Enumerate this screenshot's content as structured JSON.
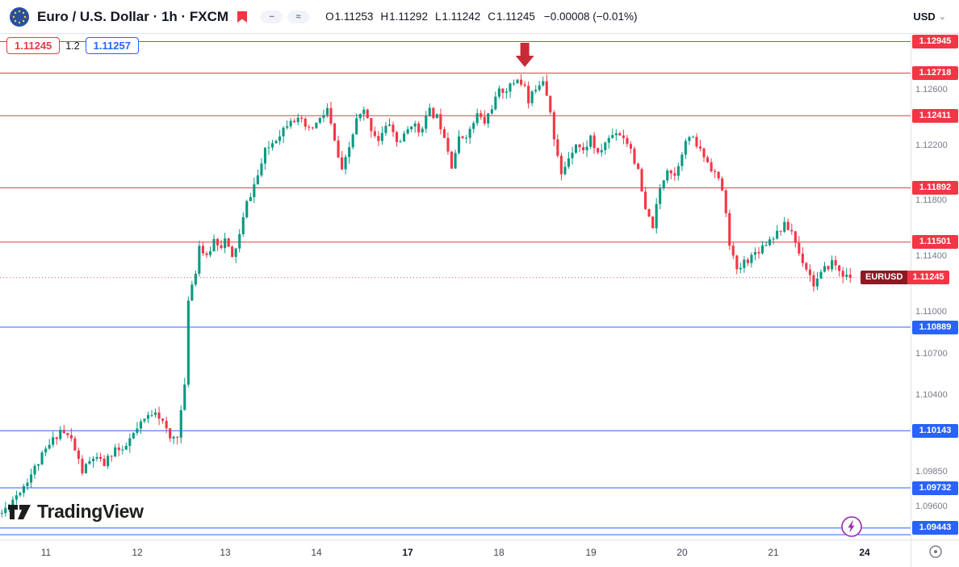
{
  "header": {
    "symbol_title": "Euro / U.S. Dollar · 1h · FXCM",
    "pills": [
      "−",
      "≈"
    ],
    "ohlc": {
      "o_label": "O",
      "o_value": "1.11253",
      "h_label": "H",
      "h_value": "1.11292",
      "l_label": "L",
      "l_value": "1.11242",
      "c_label": "C",
      "c_value": "1.11245",
      "change_value": "−0.00008 (−0.01%)"
    },
    "currency": "USD"
  },
  "icons": {
    "chevron_down": "⌄"
  },
  "overlay_labels": {
    "left_price": "1.11245",
    "mid_text": "1.2",
    "right_price": "1.11257"
  },
  "watermark": {
    "text": "TradingView"
  },
  "chart_data": {
    "type": "candlestick",
    "symbol": "EURUSD",
    "interval": "1h",
    "exchange": "FXCM",
    "title": "Euro / U.S. Dollar · 1h · FXCM",
    "ohlc_current": {
      "open": 1.11253,
      "high": 1.11292,
      "low": 1.11242,
      "close": 1.11245,
      "change": -8e-05,
      "change_pct": "-0.01%"
    },
    "ylim": [
      1.0936,
      1.13
    ],
    "n_slots": 249,
    "n_candles": 233,
    "levels_resistance": [
      {
        "price": 1.12945,
        "label": "1.12945"
      },
      {
        "price": 1.12718,
        "label": "1.12718"
      },
      {
        "price": 1.12411,
        "label": "1.12411"
      },
      {
        "price": 1.11892,
        "label": "1.11892"
      },
      {
        "price": 1.11501,
        "label": "1.11501"
      }
    ],
    "levels_support": [
      {
        "price": 1.10889,
        "label": "1.10889"
      },
      {
        "price": 1.10143,
        "label": "1.10143"
      },
      {
        "price": 1.09732,
        "label": "1.09732"
      },
      {
        "price": 1.09443,
        "label": "1.09443"
      },
      {
        "price": 1.09395,
        "label": null
      }
    ],
    "last_price": {
      "label": "EURUSD",
      "value": "1.11245",
      "price": 1.11245
    },
    "y_ticks": [
      "1.12600",
      "1.12200",
      "1.11800",
      "1.11400",
      "1.11000",
      "1.10700",
      "1.10400",
      "1.09850",
      "1.09600"
    ],
    "x_ticks": [
      {
        "label": "11",
        "i": 12,
        "bold": false
      },
      {
        "label": "12",
        "i": 37,
        "bold": false
      },
      {
        "label": "13",
        "i": 61,
        "bold": false
      },
      {
        "label": "14",
        "i": 86,
        "bold": false
      },
      {
        "label": "17",
        "i": 111,
        "bold": true
      },
      {
        "label": "18",
        "i": 136,
        "bold": false
      },
      {
        "label": "19",
        "i": 161,
        "bold": false
      },
      {
        "label": "20",
        "i": 186,
        "bold": false
      },
      {
        "label": "21",
        "i": 211,
        "bold": false
      },
      {
        "label": "24",
        "i": 236,
        "bold": true
      }
    ],
    "annotation": {
      "type": "arrow-down",
      "i": 143,
      "y_top": 11,
      "y_shaft_bottom": 27,
      "y_tip": 41
    },
    "price_path": [
      [
        1,
        1.0955
      ],
      [
        7,
        1.0975
      ],
      [
        13,
        1.1
      ],
      [
        17,
        1.1015
      ],
      [
        20,
        1.1008
      ],
      [
        23,
        1.0985
      ],
      [
        26,
        1.0995
      ],
      [
        29,
        1.099
      ],
      [
        32,
        1.1002
      ],
      [
        34,
        1.0998
      ],
      [
        36,
        1.1008
      ],
      [
        40,
        1.1022
      ],
      [
        43,
        1.103
      ],
      [
        45,
        1.102
      ],
      [
        47,
        1.1008
      ],
      [
        49,
        1.1012
      ],
      [
        51,
        1.1045
      ],
      [
        52,
        1.111
      ],
      [
        54,
        1.113
      ],
      [
        55,
        1.1148
      ],
      [
        57,
        1.1138
      ],
      [
        59,
        1.1152
      ],
      [
        61,
        1.1148
      ],
      [
        62,
        1.1152
      ],
      [
        64,
        1.1138
      ],
      [
        66,
        1.1155
      ],
      [
        68,
        1.1178
      ],
      [
        71,
        1.1198
      ],
      [
        73,
        1.1215
      ],
      [
        75,
        1.1222
      ],
      [
        78,
        1.1232
      ],
      [
        80,
        1.124
      ],
      [
        83,
        1.1236
      ],
      [
        85,
        1.123
      ],
      [
        88,
        1.1238
      ],
      [
        90,
        1.1246
      ],
      [
        92,
        1.1222
      ],
      [
        94,
        1.12
      ],
      [
        96,
        1.1218
      ],
      [
        98,
        1.1238
      ],
      [
        100,
        1.1244
      ],
      [
        102,
        1.1232
      ],
      [
        104,
        1.1224
      ],
      [
        107,
        1.1236
      ],
      [
        109,
        1.1222
      ],
      [
        111,
        1.1226
      ],
      [
        113,
        1.1236
      ],
      [
        115,
        1.123
      ],
      [
        118,
        1.1244
      ],
      [
        120,
        1.124
      ],
      [
        122,
        1.1228
      ],
      [
        124,
        1.1206
      ],
      [
        126,
        1.1224
      ],
      [
        129,
        1.123
      ],
      [
        131,
        1.1242
      ],
      [
        133,
        1.1236
      ],
      [
        135,
        1.1248
      ],
      [
        137,
        1.1258
      ],
      [
        140,
        1.1262
      ],
      [
        142,
        1.1268
      ],
      [
        144,
        1.1262
      ],
      [
        145,
        1.125
      ],
      [
        147,
        1.1262
      ],
      [
        149,
        1.1268
      ],
      [
        151,
        1.1246
      ],
      [
        152,
        1.1224
      ],
      [
        154,
        1.1198
      ],
      [
        156,
        1.1212
      ],
      [
        158,
        1.1222
      ],
      [
        160,
        1.1215
      ],
      [
        162,
        1.1226
      ],
      [
        164,
        1.1212
      ],
      [
        166,
        1.1222
      ],
      [
        169,
        1.123
      ],
      [
        171,
        1.1226
      ],
      [
        173,
        1.1218
      ],
      [
        175,
        1.12
      ],
      [
        177,
        1.1172
      ],
      [
        179,
        1.1162
      ],
      [
        181,
        1.1188
      ],
      [
        183,
        1.1204
      ],
      [
        185,
        1.1198
      ],
      [
        187,
        1.1216
      ],
      [
        189,
        1.1226
      ],
      [
        191,
        1.122
      ],
      [
        193,
        1.1212
      ],
      [
        196,
        1.12
      ],
      [
        198,
        1.1188
      ],
      [
        200,
        1.115
      ],
      [
        202,
        1.1128
      ],
      [
        204,
        1.1136
      ],
      [
        206,
        1.114
      ],
      [
        208,
        1.1145
      ],
      [
        210,
        1.115
      ],
      [
        212,
        1.1155
      ],
      [
        215,
        1.1162
      ],
      [
        217,
        1.1158
      ],
      [
        219,
        1.1142
      ],
      [
        221,
        1.1132
      ],
      [
        223,
        1.112
      ],
      [
        226,
        1.113
      ],
      [
        228,
        1.1136
      ],
      [
        230,
        1.113
      ],
      [
        232,
        1.11245
      ]
    ]
  },
  "colors": {
    "up": "#089981",
    "down": "#f23645",
    "resistance": "#f23645",
    "support": "#2962ff",
    "arrow": "#c62b38",
    "last_price_line": "#f23645",
    "purple": "#9c27b0"
  }
}
